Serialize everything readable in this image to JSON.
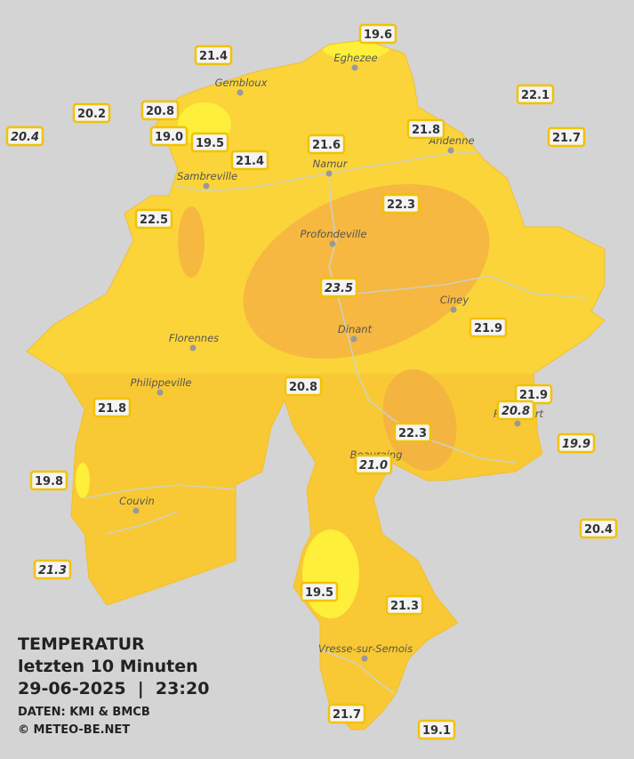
{
  "title": {
    "line1": "TEMPERATUR",
    "line2": "letzten 10 Minuten",
    "line3": "29-06-2025  |  23:20",
    "source": "DATEN: KMI & BMCB",
    "copyright": "© METEO-BE.NET"
  },
  "stations": [
    "19.6",
    "21.4",
    "22.1",
    "20.2",
    "20.8",
    "20.4",
    "19.0",
    "19.5",
    "21.8",
    "21.7",
    "21.6",
    "21.4",
    "22.3",
    "22.5",
    "23.5",
    "21.9",
    "20.8",
    "21.8",
    "21.9",
    "20.8",
    "22.3",
    "19.9",
    "21.0",
    "19.8",
    "20.4",
    "21.3",
    "19.5",
    "21.3",
    "21.7",
    "19.1"
  ],
  "cities": [
    "Eghezee",
    "Gembloux",
    "Andenne",
    "Namur",
    "Sambreville",
    "Profondeville",
    "Ciney",
    "Dinant",
    "Florennes",
    "Philippeville",
    "Couvin",
    "Beauraing",
    "Rochefort",
    "Vresse-sur-Semois"
  ]
}
